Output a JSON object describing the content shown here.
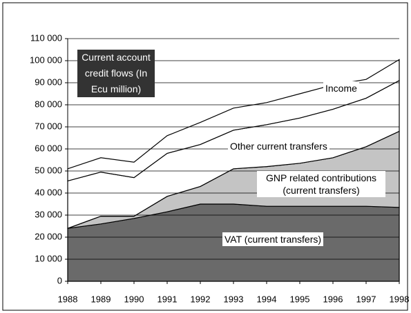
{
  "chart_data": {
    "type": "stacked_area",
    "title": "Current account credit flows (In Ecu million)",
    "x": [
      1988,
      1989,
      1990,
      1991,
      1992,
      1993,
      1994,
      1995,
      1996,
      1997,
      1998
    ],
    "xlim": [
      1988,
      1998
    ],
    "xticks": [
      1988,
      1989,
      1990,
      1991,
      1992,
      1993,
      1994,
      1995,
      1996,
      1997,
      1998
    ],
    "ylim": [
      0,
      110000
    ],
    "yticks": [
      0,
      {
        "value": 10000,
        "label": "10 000"
      },
      {
        "value": 20000,
        "label": "20 000"
      },
      {
        "value": 30000,
        "label": "30 000"
      },
      {
        "value": 40000,
        "label": "40 000"
      },
      {
        "value": 50000,
        "label": "50 000"
      },
      {
        "value": 60000,
        "label": "60 000"
      },
      {
        "value": 70000,
        "label": "70 000"
      },
      {
        "value": 80000,
        "label": "80 000"
      },
      {
        "value": 90000,
        "label": "90 000"
      },
      {
        "value": 100000,
        "label": "100 000"
      },
      {
        "value": 110000,
        "label": "110 000"
      }
    ],
    "grid": true,
    "series": [
      {
        "name": "VAT (current transfers)",
        "color": "#6a6a6a",
        "values": [
          24000,
          26000,
          28500,
          31500,
          35000,
          35000,
          34000,
          34000,
          34000,
          34000,
          33500
        ]
      },
      {
        "name": "GNP related contributions (current transfers)",
        "color": "#c4c4c4",
        "values": [
          0,
          3500,
          1000,
          7000,
          8000,
          16000,
          18000,
          19500,
          22000,
          27000,
          34500
        ]
      },
      {
        "name": "Other current transfers",
        "color": "#ffffff",
        "values": [
          21500,
          20000,
          17500,
          19500,
          19000,
          17500,
          19000,
          20500,
          22000,
          22000,
          23000
        ]
      },
      {
        "name": "Income",
        "color": "#ffffff",
        "values": [
          5500,
          6500,
          7000,
          8000,
          10000,
          10000,
          10000,
          11000,
          11000,
          8500,
          9500
        ]
      }
    ]
  }
}
